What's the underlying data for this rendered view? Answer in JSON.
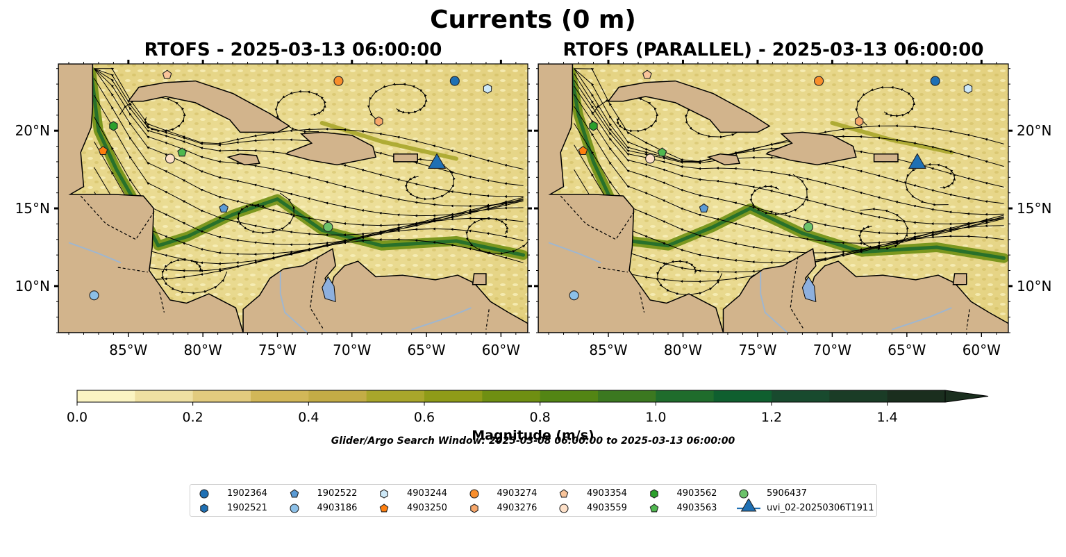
{
  "suptitle": "Currents (0 m)",
  "panels": [
    {
      "title": "RTOFS - 2025-03-13 06:00:00"
    },
    {
      "title": "RTOFS (PARALLEL) - 2025-03-13 06:00:00"
    }
  ],
  "search_window": "Glider/Argo Search Window: 2025-03-08 06:00:00 to 2025-03-13 06:00:00",
  "chart_data": {
    "type": "heatmap",
    "description_fields": "map panels of surface current magnitude with streamlines",
    "x_ticks": [
      "85°W",
      "80°W",
      "75°W",
      "70°W",
      "65°W",
      "60°W"
    ],
    "x_tick_values": [
      -85,
      -80,
      -75,
      -70,
      -65,
      -60
    ],
    "y_ticks": [
      "20°N",
      "15°N",
      "10°N"
    ],
    "y_tick_values": [
      20,
      15,
      10
    ],
    "xlim": [
      -89.7,
      -58.2
    ],
    "ylim": [
      7.0,
      24.3
    ],
    "colorbar": {
      "label": "Magnitude (m/s)",
      "ticks": [
        "0.0",
        "0.2",
        "0.4",
        "0.6",
        "0.8",
        "1.0",
        "1.2",
        "1.4"
      ],
      "tick_values": [
        0.0,
        0.2,
        0.4,
        0.6,
        0.8,
        1.0,
        1.2,
        1.4
      ],
      "range": [
        0.0,
        1.5
      ],
      "extend": "max",
      "levels": [
        0.0,
        0.1,
        0.2,
        0.3,
        0.4,
        0.5,
        0.6,
        0.7,
        0.8,
        0.9,
        1.0,
        1.1,
        1.2,
        1.3,
        1.4,
        1.5
      ],
      "colors": [
        "#fbf4c2",
        "#efe0a2",
        "#e2cb7e",
        "#d2b758",
        "#c3ac46",
        "#a9a62b",
        "#8f9b18",
        "#6f8f12",
        "#538514",
        "#3b7820",
        "#1f6c2c",
        "#0f5f2f",
        "#184a2e",
        "#1a3c26",
        "#1a2e1e"
      ]
    },
    "colors": {
      "land": "#d2b48c",
      "lake": "#8eb0de",
      "river": "#9fb6cf",
      "water_bg": "#ece29a"
    },
    "markers": [
      {
        "id": "1902364",
        "shape": "circle",
        "color": "#1f70b4",
        "lon": -63.1,
        "lat": 23.2
      },
      {
        "id": "1902521",
        "shape": "hexagon",
        "color": "#1f70b4",
        "lon": -78.6,
        "lat": 19.5,
        "hidden": true
      },
      {
        "id": "1902522",
        "shape": "pentagon",
        "color": "#5b9bd5",
        "lon": -78.6,
        "lat": 15.0
      },
      {
        "id": "4903186",
        "shape": "circle",
        "color": "#8cc0e8",
        "lon": -87.3,
        "lat": 9.4
      },
      {
        "id": "4903244",
        "shape": "hexagon",
        "color": "#cde8f7",
        "lon": -60.9,
        "lat": 22.7
      },
      {
        "id": "4903250",
        "shape": "pentagon",
        "color": "#ff7f0e",
        "lon": -86.7,
        "lat": 18.7
      },
      {
        "id": "4903274",
        "shape": "circle",
        "color": "#f98e2b",
        "lon": -70.9,
        "lat": 23.2
      },
      {
        "id": "4903276",
        "shape": "hexagon",
        "color": "#f7a76a",
        "lon": -68.2,
        "lat": 20.6
      },
      {
        "id": "4903354",
        "shape": "pentagon",
        "color": "#f9c49a",
        "lon": -82.4,
        "lat": 23.6
      },
      {
        "id": "4903559",
        "shape": "circle",
        "color": "#fde0c8",
        "lon": -82.2,
        "lat": 18.2
      },
      {
        "id": "4903562",
        "shape": "hexagon",
        "color": "#2ca02c",
        "lon": -86.0,
        "lat": 20.3
      },
      {
        "id": "4903563",
        "shape": "pentagon",
        "color": "#4fb84f",
        "lon": -81.4,
        "lat": 18.6
      },
      {
        "id": "5906437",
        "shape": "circle",
        "color": "#6cc26a",
        "lon": -71.6,
        "lat": 13.8
      },
      {
        "id": "uvi_02-20250306T1911",
        "shape": "triangle",
        "color": "#1f70b4",
        "lon": -64.3,
        "lat": 17.8
      }
    ]
  },
  "legend": {
    "items": [
      {
        "label": "1902364",
        "shape": "circle",
        "color": "#1f70b4"
      },
      {
        "label": "1902521",
        "shape": "hexagon",
        "color": "#1f70b4"
      },
      {
        "label": "1902522",
        "shape": "pentagon",
        "color": "#5b9bd5"
      },
      {
        "label": "4903186",
        "shape": "circle",
        "color": "#8cc0e8"
      },
      {
        "label": "4903244",
        "shape": "hexagon",
        "color": "#cde8f7"
      },
      {
        "label": "4903250",
        "shape": "pentagon",
        "color": "#ff7f0e"
      },
      {
        "label": "4903274",
        "shape": "circle",
        "color": "#f98e2b"
      },
      {
        "label": "4903276",
        "shape": "hexagon",
        "color": "#f7a76a"
      },
      {
        "label": "4903354",
        "shape": "pentagon",
        "color": "#f9c49a"
      },
      {
        "label": "4903559",
        "shape": "circle",
        "color": "#fde0c8"
      },
      {
        "label": "4903562",
        "shape": "hexagon",
        "color": "#2ca02c"
      },
      {
        "label": "4903563",
        "shape": "pentagon",
        "color": "#4fb84f"
      },
      {
        "label": "5906437",
        "shape": "circle",
        "color": "#6cc26a"
      },
      {
        "label": "uvi_02-20250306T1911",
        "shape": "triangle",
        "color": "#1f70b4"
      }
    ]
  }
}
